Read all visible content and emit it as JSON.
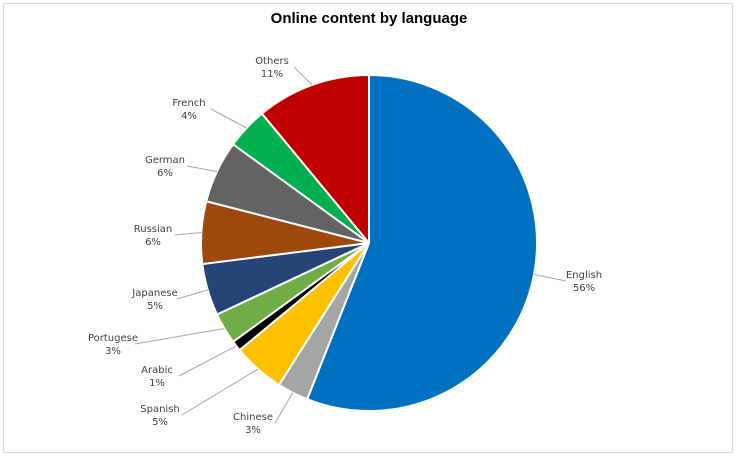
{
  "chart_data": {
    "type": "pie",
    "title": "Online content by language",
    "slices": [
      {
        "label": "English",
        "value": 56,
        "value_label": "56%",
        "color": "#0070C0"
      },
      {
        "label": "Chinese",
        "value": 3,
        "value_label": "3%",
        "color": "#A5A5A5"
      },
      {
        "label": "Spanish",
        "value": 5,
        "value_label": "5%",
        "color": "#FFC000"
      },
      {
        "label": "Arabic",
        "value": 1,
        "value_label": "1%",
        "color": "#000000"
      },
      {
        "label": "Portugese",
        "value": 3,
        "value_label": "3%",
        "color": "#70AD47"
      },
      {
        "label": "Japanese",
        "value": 5,
        "value_label": "5%",
        "color": "#264478"
      },
      {
        "label": "Russian",
        "value": 6,
        "value_label": "6%",
        "color": "#9E480E"
      },
      {
        "label": "German",
        "value": 6,
        "value_label": "6%",
        "color": "#636363"
      },
      {
        "label": "French",
        "value": 4,
        "value_label": "4%",
        "color": "#00B050"
      },
      {
        "label": "Others",
        "value": 11,
        "value_label": "11%",
        "color": "#C00000"
      }
    ],
    "start_angle_deg": 0,
    "direction": "clockwise",
    "legend": "none"
  }
}
